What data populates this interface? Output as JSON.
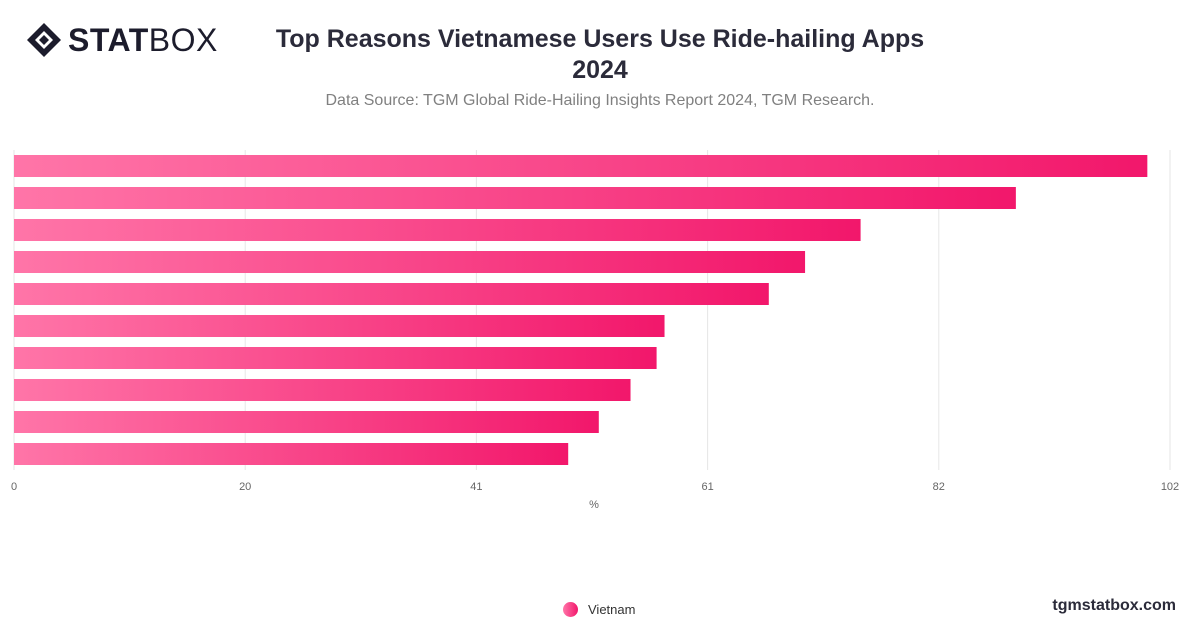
{
  "logo": {
    "bold": "STAT",
    "light": "BOX"
  },
  "header": {
    "title_line1": "Top Reasons Vietnamese Users Use Ride-hailing Apps",
    "title_line2": "2024",
    "subtitle": "Data Source: TGM Global Ride-Hailing Insights Report 2024, TGM Research."
  },
  "colors": {
    "bar_start": "#ff75a8",
    "bar_end": "#f2176b",
    "grid": "#e6e6e6",
    "axis_text": "#666666"
  },
  "chart_data": {
    "type": "bar",
    "orientation": "horizontal",
    "categories": [
      "",
      "",
      "",
      "",
      "",
      "",
      "",
      "",
      "",
      ""
    ],
    "series": [
      {
        "name": "Vietnam",
        "values": [
          100,
          88.4,
          74.7,
          69.8,
          66.6,
          57.4,
          56.7,
          54.4,
          51.6,
          48.9
        ]
      }
    ],
    "xlabel": "%",
    "xlim": [
      0,
      102
    ],
    "xticks": [
      "0",
      "20",
      "41",
      "61",
      "82",
      "102"
    ],
    "grid": true,
    "legend": "bottom-center"
  },
  "footer": {
    "site": "tgmstatbox.com"
  }
}
